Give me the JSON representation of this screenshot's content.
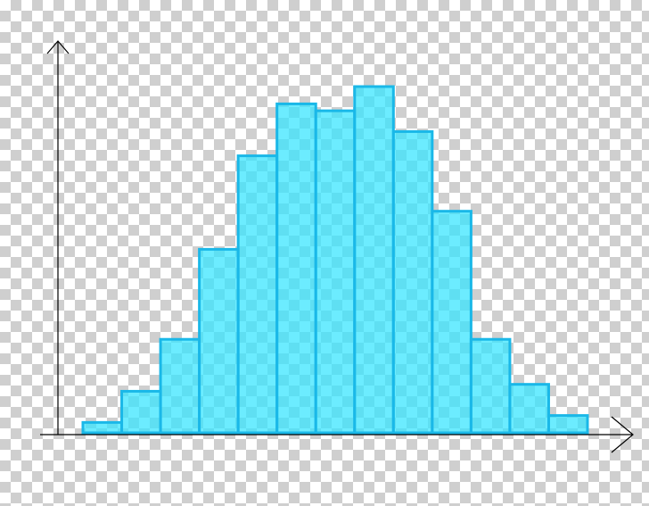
{
  "chart_data": {
    "type": "bar",
    "title": "",
    "xlabel": "",
    "ylabel": "",
    "grid": false,
    "legend": "none",
    "categories": [
      "",
      "",
      "",
      "",
      "",
      "",
      "",
      "",
      "",
      "",
      "",
      "",
      ""
    ],
    "values": [
      3,
      12,
      27,
      53,
      80,
      95,
      93,
      100,
      87,
      64,
      27,
      14,
      5
    ],
    "ylim": [
      0,
      100
    ],
    "colors": {
      "bar_fill": "#33e5ff",
      "bar_stroke": "#1ab8e8",
      "axis": "#000000",
      "checker_dark": "#cfcfcf",
      "checker_light": "#ffffff"
    },
    "background": "transparency-checkerboard",
    "axes": [
      "x-arrow",
      "y-arrow"
    ]
  }
}
